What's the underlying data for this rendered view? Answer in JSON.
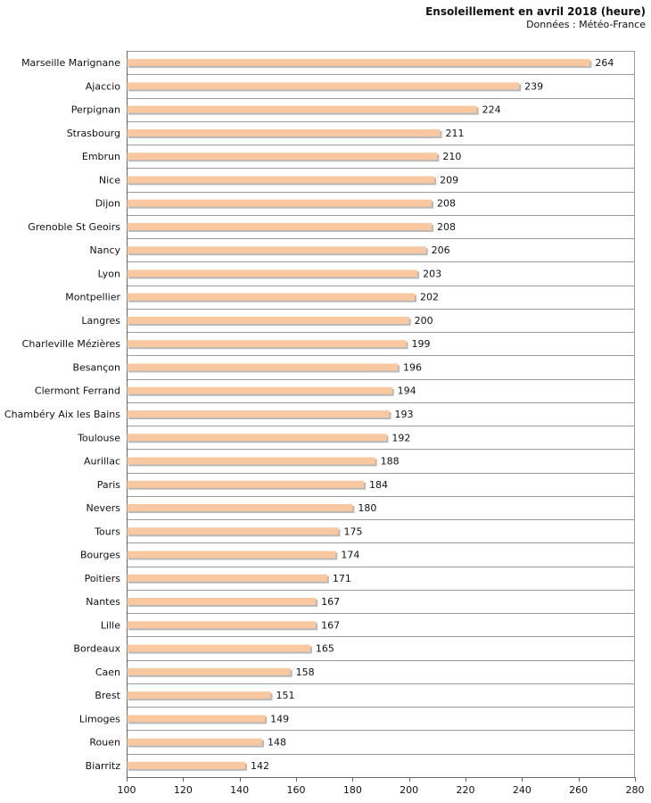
{
  "chart_data": {
    "type": "bar",
    "orientation": "horizontal",
    "title": "Ensoleillement en avril 2018 (heure)",
    "subtitle": "Données : Météo-France",
    "xlim": [
      100,
      280
    ],
    "xticks": [
      100,
      120,
      140,
      160,
      180,
      200,
      220,
      240,
      260,
      280
    ],
    "grid": true,
    "bar_color": "#f9c8a0",
    "categories": [
      "Marseille Marignane",
      "Ajaccio",
      "Perpignan",
      "Strasbourg",
      "Embrun",
      "Nice",
      "Dijon",
      "Grenoble St Geoirs",
      "Nancy",
      "Lyon",
      "Montpellier",
      "Langres",
      "Charleville Mézières",
      "Besançon",
      "Clermont Ferrand",
      "Chambéry Aix les Bains",
      "Toulouse",
      "Aurillac",
      "Paris",
      "Nevers",
      "Tours",
      "Bourges",
      "Poitiers",
      "Nantes",
      "Lille",
      "Bordeaux",
      "Caen",
      "Brest",
      "Limoges",
      "Rouen",
      "Biarritz"
    ],
    "values": [
      264,
      239,
      224,
      211,
      210,
      209,
      208,
      208,
      206,
      203,
      202,
      200,
      199,
      196,
      194,
      193,
      192,
      188,
      184,
      180,
      175,
      174,
      171,
      167,
      167,
      165,
      158,
      151,
      149,
      148,
      142
    ]
  }
}
